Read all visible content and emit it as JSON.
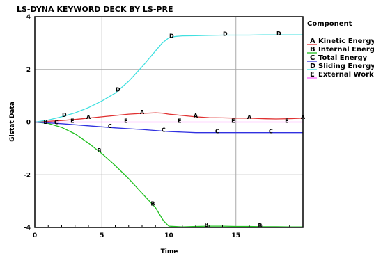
{
  "chart_data": {
    "type": "line",
    "title": "LS-DYNA KEYWORD DECK BY LS-PRE",
    "xlabel": "Time",
    "ylabel": "Glstat Data",
    "xlim": [
      0,
      20
    ],
    "ylim": [
      -4,
      4
    ],
    "xticks": [
      "0",
      "5",
      "10",
      "15"
    ],
    "xtick_values": [
      0,
      5,
      10,
      15
    ],
    "yticks": [
      "4",
      "2",
      "0",
      "-2",
      "-4"
    ],
    "ytick_values": [
      4,
      2,
      0,
      -2,
      -4
    ],
    "grid": true,
    "legend": {
      "title": "Component",
      "position": "right"
    },
    "series": [
      {
        "name": "Kinetic Energy",
        "letter": "A",
        "color": "#e03030",
        "x": [
          0,
          1,
          2,
          3,
          4,
          5,
          6,
          7,
          8,
          9,
          9.5,
          10,
          11,
          12,
          13,
          14,
          15,
          16,
          17,
          18,
          19,
          20
        ],
        "y": [
          0,
          0.03,
          0.06,
          0.1,
          0.15,
          0.2,
          0.25,
          0.3,
          0.33,
          0.35,
          0.34,
          0.3,
          0.25,
          0.2,
          0.17,
          0.16,
          0.15,
          0.15,
          0.13,
          0.12,
          0.13,
          0.15
        ],
        "markers_x": [
          4,
          8,
          12,
          16,
          20
        ]
      },
      {
        "name": "Internal Energy",
        "letter": "B",
        "color": "#20c020",
        "x": [
          0,
          1,
          2,
          3,
          4,
          5,
          6,
          7,
          8,
          9,
          9.6,
          10,
          11,
          12,
          13,
          14,
          15,
          16,
          17,
          18,
          19,
          20
        ],
        "y": [
          0,
          -0.05,
          -0.2,
          -0.45,
          -0.8,
          -1.2,
          -1.65,
          -2.15,
          -2.7,
          -3.25,
          -3.75,
          -3.95,
          -3.98,
          -3.96,
          -3.95,
          -3.95,
          -3.96,
          -3.96,
          -3.97,
          -3.97,
          -3.98,
          -3.98
        ],
        "markers_x": [
          0.8,
          4.8,
          8.8,
          12.8,
          16.8
        ]
      },
      {
        "name": "Total Energy",
        "letter": "C",
        "color": "#3030e0",
        "x": [
          0,
          1,
          2,
          3,
          4,
          5,
          6,
          7,
          8,
          9,
          10,
          11,
          12,
          13,
          14,
          15,
          16,
          17,
          18,
          19,
          20
        ],
        "y": [
          0,
          -0.03,
          -0.06,
          -0.1,
          -0.14,
          -0.18,
          -0.22,
          -0.25,
          -0.28,
          -0.32,
          -0.36,
          -0.38,
          -0.4,
          -0.4,
          -0.4,
          -0.4,
          -0.4,
          -0.4,
          -0.4,
          -0.4,
          -0.4
        ],
        "markers_x": [
          1.6,
          5.6,
          9.6,
          13.6,
          17.6
        ]
      },
      {
        "name": "Sliding Energy",
        "letter": "D",
        "color": "#40e0e0",
        "x": [
          0,
          1,
          2,
          3,
          4,
          5,
          6,
          7,
          8,
          9,
          9.5,
          10,
          10.5,
          11,
          12,
          13,
          14,
          15,
          16,
          17,
          18,
          19,
          20
        ],
        "y": [
          0,
          0.08,
          0.2,
          0.35,
          0.55,
          0.8,
          1.1,
          1.55,
          2.1,
          2.7,
          3.0,
          3.2,
          3.25,
          3.27,
          3.28,
          3.29,
          3.3,
          3.3,
          3.3,
          3.31,
          3.31,
          3.31,
          3.31
        ],
        "markers_x": [
          2.2,
          6.2,
          10.2,
          14.2,
          18.2
        ]
      },
      {
        "name": "External Work",
        "letter": "E",
        "color": "#ff60ff",
        "x": [
          0,
          2,
          4,
          6,
          8,
          10,
          12,
          14,
          16,
          18,
          20
        ],
        "y": [
          0,
          0,
          0,
          0,
          0,
          0,
          0,
          0,
          0,
          0,
          0
        ],
        "markers_x": [
          2.8,
          6.8,
          10.8,
          14.8,
          18.8
        ]
      }
    ]
  }
}
